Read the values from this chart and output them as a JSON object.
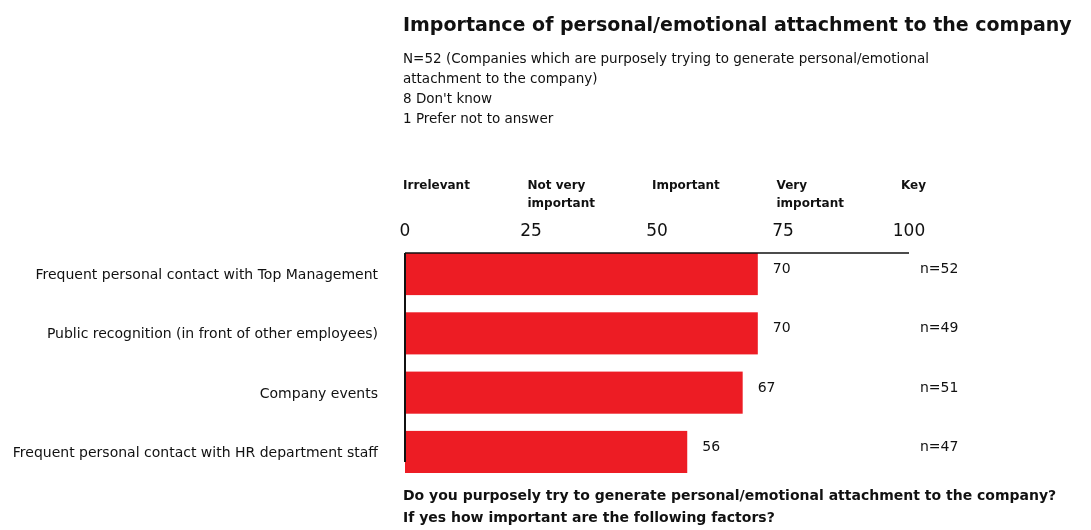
{
  "chart_data": {
    "type": "bar",
    "orientation": "horizontal",
    "title": "Importance of personal/emotional attachment to the company",
    "subtitle": "N=52 (Companies which are purposely trying to generate personal/emotional\nattachment to the company)\n8 Don't know\n1 Prefer not to answer",
    "categories": [
      "Frequent personal contact with Top Management",
      "Public recognition (in front of other employees)",
      "Company events",
      "Frequent personal contact with HR department staff"
    ],
    "values": [
      70,
      70,
      67,
      56
    ],
    "color": "#ed1c24",
    "xlim": [
      0,
      100
    ],
    "xticks": [
      0,
      25,
      50,
      75,
      100
    ],
    "data_labels": true,
    "annotations": [
      "Irrelevant",
      "Not very important",
      "Important",
      "Very important",
      "Key",
      "n=52",
      "n=49",
      "n=51",
      "n=47",
      "Do you purposely try to generate personal/emotional attachment to the company?",
      "If yes how important are the following factors?"
    ]
  }
}
